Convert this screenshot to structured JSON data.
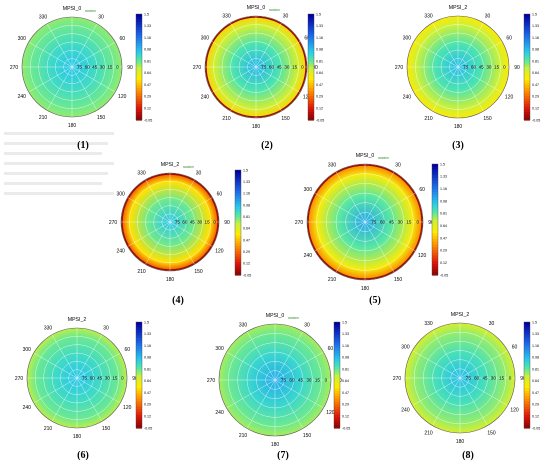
{
  "figure": {
    "ghost_text_rows": 7
  },
  "chart_data": [
    {
      "type": "heatmap",
      "projection": "polar",
      "title": "MPSI_0",
      "title_sub": "random",
      "caption": "(1)",
      "angle_ticks": [
        "330",
        "30",
        "300",
        "60",
        "270",
        "90",
        "240",
        "120",
        "210",
        "150",
        "180"
      ],
      "radial_ticks": [
        "75",
        "60",
        "45",
        "30",
        "15",
        "0"
      ],
      "colorbar_ticks": [
        "1.5",
        "1.33",
        "1.16",
        "0.98",
        "0.81",
        "0.64",
        "0.47",
        "0.29",
        "0.12",
        "-0.05"
      ],
      "clim": [
        -0.05,
        1.5
      ],
      "value_profile": {
        "center": 0.98,
        "mid": 0.9,
        "edge": 0.82,
        "rim": 0.78
      }
    },
    {
      "type": "heatmap",
      "projection": "polar",
      "title": "MPSI_0",
      "title_sub": "random",
      "caption": "(2)",
      "angle_ticks": [
        "330",
        "30",
        "300",
        "60",
        "270",
        "90",
        "240",
        "120",
        "210",
        "150",
        "180"
      ],
      "radial_ticks": [
        "75",
        "60",
        "45",
        "30",
        "15",
        "0"
      ],
      "colorbar_ticks": [
        "1.5",
        "1.33",
        "1.16",
        "0.98",
        "0.81",
        "0.64",
        "0.47",
        "0.29",
        "0.12",
        "-0.05"
      ],
      "clim": [
        -0.05,
        1.5
      ],
      "value_profile": {
        "center": 1.02,
        "mid": 0.86,
        "edge": 0.7,
        "rim": 0.52
      }
    },
    {
      "type": "heatmap",
      "projection": "polar",
      "title": "MPSI_2",
      "title_sub": "",
      "caption": "(3)",
      "angle_ticks": [
        "330",
        "30",
        "300",
        "60",
        "270",
        "90",
        "240",
        "120",
        "210",
        "150",
        "180"
      ],
      "radial_ticks": [
        "75",
        "60",
        "45",
        "30",
        "15",
        "0"
      ],
      "colorbar_ticks": [
        "1.5",
        "1.33",
        "1.16",
        "0.98",
        "0.81",
        "0.64",
        "0.47",
        "0.29",
        "0.12",
        "-0.05"
      ],
      "clim": [
        -0.05,
        1.5
      ],
      "value_profile": {
        "center": 1.0,
        "mid": 0.86,
        "edge": 0.72,
        "rim": 0.58
      }
    },
    {
      "type": "heatmap",
      "projection": "polar",
      "title": "MPSI_2",
      "title_sub": "random",
      "caption": "(4)",
      "angle_ticks": [
        "330",
        "30",
        "300",
        "60",
        "270",
        "90",
        "240",
        "120",
        "210",
        "150",
        "180"
      ],
      "radial_ticks": [
        "75",
        "60",
        "45",
        "30",
        "15",
        "0"
      ],
      "colorbar_ticks": [
        "1.5",
        "1.33",
        "1.16",
        "0.98",
        "0.81",
        "0.64",
        "0.47",
        "0.29",
        "0.12",
        "-0.05"
      ],
      "clim": [
        -0.05,
        1.5
      ],
      "value_profile": {
        "center": 0.98,
        "mid": 0.82,
        "edge": 0.55,
        "rim": 0.25
      }
    },
    {
      "type": "heatmap",
      "projection": "polar",
      "title": "MPSI_0",
      "title_sub": "random",
      "caption": "(5)",
      "angle_ticks": [
        "330",
        "30",
        "300",
        "60",
        "270",
        "90",
        "240",
        "120",
        "210",
        "150",
        "180"
      ],
      "radial_ticks": [
        "75",
        "60",
        "45",
        "30",
        "15",
        "0"
      ],
      "colorbar_ticks": [
        "1.5",
        "1.33",
        "1.16",
        "0.98",
        "0.81",
        "0.64",
        "0.47",
        "0.29",
        "0.12",
        "-0.05"
      ],
      "clim": [
        -0.05,
        1.5
      ],
      "value_profile": {
        "center": 1.05,
        "mid": 0.84,
        "edge": 0.6,
        "rim": 0.35
      }
    },
    {
      "type": "heatmap",
      "projection": "polar",
      "title": "MPSI_2",
      "title_sub": "",
      "caption": "(6)",
      "angle_ticks": [
        "330",
        "30",
        "300",
        "60",
        "270",
        "90",
        "240",
        "120",
        "210",
        "150",
        "180"
      ],
      "radial_ticks": [
        "75",
        "60",
        "45",
        "30",
        "15",
        "0"
      ],
      "colorbar_ticks": [
        "1.5",
        "1.33",
        "1.16",
        "0.98",
        "0.81",
        "0.64",
        "0.47",
        "0.29",
        "0.12",
        "-0.05"
      ],
      "clim": [
        -0.05,
        1.5
      ],
      "value_profile": {
        "center": 0.98,
        "mid": 0.9,
        "edge": 0.82,
        "rim": 0.74
      }
    },
    {
      "type": "heatmap",
      "projection": "polar",
      "title": "MPSI_0",
      "title_sub": "random",
      "caption": "(7)",
      "angle_ticks": [
        "330",
        "30",
        "300",
        "60",
        "270",
        "90",
        "240",
        "120",
        "210",
        "150",
        "180"
      ],
      "radial_ticks": [
        "75",
        "60",
        "45",
        "30",
        "15",
        "0"
      ],
      "colorbar_ticks": [
        "1.5",
        "1.33",
        "1.16",
        "0.98",
        "0.81",
        "0.64",
        "0.47",
        "0.29",
        "0.12",
        "-0.05"
      ],
      "clim": [
        -0.05,
        1.5
      ],
      "value_profile": {
        "center": 1.04,
        "mid": 0.92,
        "edge": 0.82,
        "rim": 0.76
      }
    },
    {
      "type": "heatmap",
      "projection": "polar",
      "title": "MPSI_2",
      "title_sub": "",
      "caption": "(8)",
      "angle_ticks": [
        "330",
        "30",
        "300",
        "60",
        "270",
        "90",
        "240",
        "120",
        "210",
        "150",
        "180"
      ],
      "radial_ticks": [
        "75",
        "60",
        "45",
        "30",
        "15",
        "0"
      ],
      "colorbar_ticks": [
        "1.5",
        "1.33",
        "1.16",
        "0.98",
        "0.81",
        "0.64",
        "0.47",
        "0.29",
        "0.12",
        "-0.05"
      ],
      "clim": [
        -0.05,
        1.5
      ],
      "value_profile": {
        "center": 1.0,
        "mid": 0.88,
        "edge": 0.78,
        "rim": 0.68
      }
    }
  ]
}
